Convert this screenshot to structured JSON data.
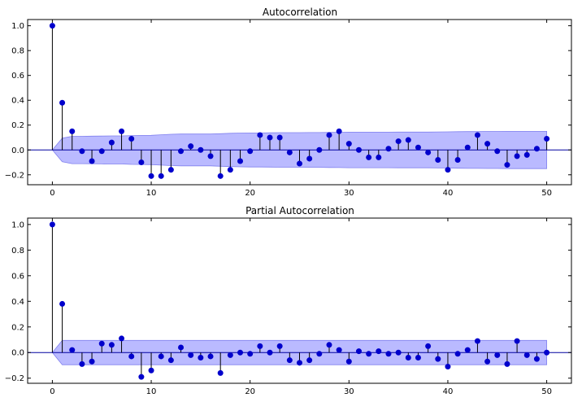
{
  "chart_data": [
    {
      "type": "stem",
      "title": "Autocorrelation",
      "xlabel": "",
      "ylabel": "",
      "xlim": [
        -2.5,
        52.5
      ],
      "ylim": [
        -0.28,
        1.05
      ],
      "x_ticks": [
        0,
        10,
        20,
        30,
        40,
        50
      ],
      "y_ticks": [
        -0.2,
        0.0,
        0.2,
        0.4,
        0.6,
        0.8,
        1.0
      ],
      "x_tick_labels": [
        "0",
        "10",
        "20",
        "30",
        "40",
        "50"
      ],
      "y_tick_labels": [
        "−0.2",
        "0.0",
        "0.2",
        "0.4",
        "0.6",
        "0.8",
        "1.0"
      ],
      "grid": false,
      "lags": [
        0,
        1,
        2,
        3,
        4,
        5,
        6,
        7,
        8,
        9,
        10,
        11,
        12,
        13,
        14,
        15,
        16,
        17,
        18,
        19,
        20,
        21,
        22,
        23,
        24,
        25,
        26,
        27,
        28,
        29,
        30,
        31,
        32,
        33,
        34,
        35,
        36,
        37,
        38,
        39,
        40,
        41,
        42,
        43,
        44,
        45,
        46,
        47,
        48,
        49,
        50
      ],
      "values": [
        1.0,
        0.38,
        0.15,
        -0.01,
        -0.09,
        -0.01,
        0.06,
        0.15,
        0.09,
        -0.1,
        -0.21,
        -0.21,
        -0.16,
        -0.01,
        0.03,
        0.0,
        -0.05,
        -0.21,
        -0.16,
        -0.09,
        -0.01,
        0.12,
        0.1,
        0.1,
        -0.02,
        -0.11,
        -0.07,
        0.0,
        0.12,
        0.15,
        0.05,
        0.0,
        -0.06,
        -0.06,
        0.01,
        0.07,
        0.08,
        0.02,
        -0.02,
        -0.08,
        -0.16,
        -0.08,
        0.02,
        0.12,
        0.05,
        -0.01,
        -0.12,
        -0.05,
        -0.04,
        0.01,
        0.09
      ],
      "confidence_upper": [
        0.0,
        0.095,
        0.11,
        0.11,
        0.111,
        0.112,
        0.113,
        0.113,
        0.116,
        0.117,
        0.118,
        0.122,
        0.126,
        0.128,
        0.128,
        0.128,
        0.128,
        0.131,
        0.134,
        0.136,
        0.137,
        0.137,
        0.138,
        0.139,
        0.139,
        0.139,
        0.14,
        0.14,
        0.141,
        0.142,
        0.143,
        0.143,
        0.143,
        0.143,
        0.143,
        0.144,
        0.144,
        0.144,
        0.144,
        0.145,
        0.146,
        0.147,
        0.148,
        0.148,
        0.149,
        0.149,
        0.15,
        0.15,
        0.15,
        0.15,
        0.15
      ],
      "colors": {
        "marker": "#0000cc",
        "stem": "#000000",
        "band": "#b3b3ff",
        "band_edge": "#8080ee",
        "zero_line": "#0000a0"
      }
    },
    {
      "type": "stem",
      "title": "Partial Autocorrelation",
      "xlabel": "",
      "ylabel": "",
      "xlim": [
        -2.5,
        52.5
      ],
      "ylim": [
        -0.24,
        1.05
      ],
      "x_ticks": [
        0,
        10,
        20,
        30,
        40,
        50
      ],
      "y_ticks": [
        -0.2,
        0.0,
        0.2,
        0.4,
        0.6,
        0.8,
        1.0
      ],
      "x_tick_labels": [
        "0",
        "10",
        "20",
        "30",
        "40",
        "50"
      ],
      "y_tick_labels": [
        "−0.2",
        "0.0",
        "0.2",
        "0.4",
        "0.6",
        "0.8",
        "1.0"
      ],
      "grid": false,
      "lags": [
        0,
        1,
        2,
        3,
        4,
        5,
        6,
        7,
        8,
        9,
        10,
        11,
        12,
        13,
        14,
        15,
        16,
        17,
        18,
        19,
        20,
        21,
        22,
        23,
        24,
        25,
        26,
        27,
        28,
        29,
        30,
        31,
        32,
        33,
        34,
        35,
        36,
        37,
        38,
        39,
        40,
        41,
        42,
        43,
        44,
        45,
        46,
        47,
        48,
        49,
        50
      ],
      "values": [
        1.0,
        0.38,
        0.02,
        -0.09,
        -0.07,
        0.07,
        0.06,
        0.11,
        -0.03,
        -0.19,
        -0.14,
        -0.03,
        -0.06,
        0.04,
        -0.02,
        -0.04,
        -0.03,
        -0.16,
        -0.02,
        0.0,
        -0.01,
        0.05,
        0.0,
        0.05,
        -0.06,
        -0.08,
        -0.06,
        -0.01,
        0.06,
        0.02,
        -0.07,
        0.01,
        -0.01,
        0.01,
        -0.01,
        0.0,
        -0.04,
        -0.04,
        0.05,
        -0.05,
        -0.11,
        -0.01,
        0.02,
        0.09,
        -0.07,
        -0.02,
        -0.09,
        0.09,
        -0.02,
        -0.05,
        0.0
      ],
      "confidence_upper": [
        0.0,
        0.095,
        0.095,
        0.095,
        0.095,
        0.095,
        0.095,
        0.095,
        0.095,
        0.095,
        0.095,
        0.095,
        0.095,
        0.095,
        0.095,
        0.095,
        0.095,
        0.095,
        0.095,
        0.095,
        0.095,
        0.095,
        0.095,
        0.095,
        0.095,
        0.095,
        0.095,
        0.095,
        0.095,
        0.095,
        0.095,
        0.095,
        0.095,
        0.095,
        0.095,
        0.095,
        0.095,
        0.095,
        0.095,
        0.095,
        0.095,
        0.095,
        0.095,
        0.095,
        0.095,
        0.095,
        0.095,
        0.095,
        0.095,
        0.095,
        0.095
      ],
      "colors": {
        "marker": "#0000cc",
        "stem": "#000000",
        "band": "#b3b3ff",
        "band_edge": "#8080ee",
        "zero_line": "#0000a0"
      }
    }
  ]
}
